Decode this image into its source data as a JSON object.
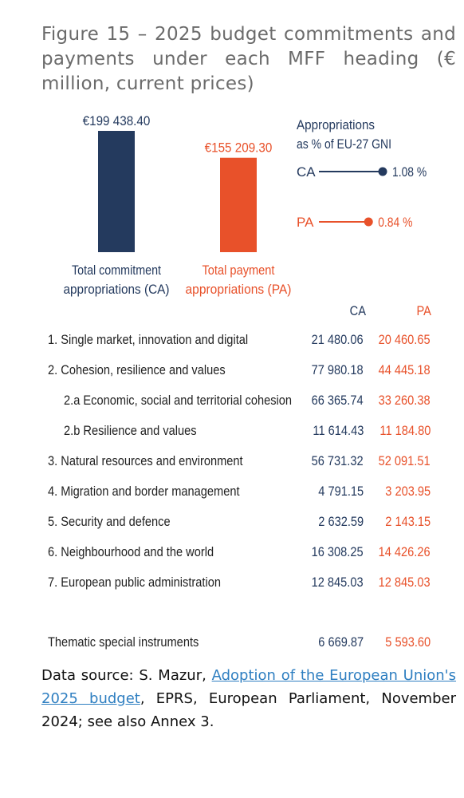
{
  "title": "Figure 15 – 2025 budget commitments and payments under each MFF heading (€ million, current prices)",
  "chart_data": [
    {
      "type": "bar",
      "categories": [
        "Total commitment appropriations (CA)",
        "Total payment appropriations (PA)"
      ],
      "values": [
        199438.4,
        155209.3
      ],
      "value_labels": [
        "€199 438.40",
        "€155 209.30"
      ],
      "category_lines": [
        [
          "Total commitment",
          "appropriations (CA)"
        ],
        [
          "Total payment",
          "appropriations (PA)"
        ]
      ],
      "colors": [
        "#243a5e",
        "#e8512a"
      ],
      "ylim": [
        0,
        199438.4
      ]
    },
    {
      "type": "scatter",
      "title_lines": [
        "Appropriations",
        "as % of EU-27 GNI"
      ],
      "series": [
        {
          "name": "CA",
          "value": 1.08,
          "label": "1.08 %",
          "color": "#243a5e"
        },
        {
          "name": "PA",
          "value": 0.84,
          "label": "0.84 %",
          "color": "#e8512a"
        }
      ]
    },
    {
      "type": "table",
      "columns": [
        "CA",
        "PA"
      ],
      "rows": [
        {
          "label": "1. Single market, innovation and digital",
          "ca": "21 480.06",
          "pa": "20 460.65",
          "sub": false
        },
        {
          "label": "2. Cohesion, resilience and values",
          "ca": "77 980.18",
          "pa": "44 445.18",
          "sub": false
        },
        {
          "label": "2.a Economic, social and territorial cohesion",
          "ca": "66 365.74",
          "pa": "33 260.38",
          "sub": true
        },
        {
          "label": "2.b Resilience and values",
          "ca": "11 614.43",
          "pa": "11 184.80",
          "sub": true
        },
        {
          "label": "3. Natural resources and environment",
          "ca": "56 731.32",
          "pa": "52 091.51",
          "sub": false
        },
        {
          "label": "4. Migration and border management",
          "ca": "4 791.15",
          "pa": "3 203.95",
          "sub": false
        },
        {
          "label": "5. Security and defence",
          "ca": "2 632.59",
          "pa": "2 143.15",
          "sub": false
        },
        {
          "label": "6. Neighbourhood and the world",
          "ca": "16 308.25",
          "pa": "14 426.26",
          "sub": false
        },
        {
          "label": "7. European public administration",
          "ca": "12 845.03",
          "pa": "12 845.03",
          "sub": false
        },
        {
          "label": "Thematic special instruments",
          "ca": "6 669.87",
          "pa": "5 593.60",
          "sub": false
        }
      ]
    }
  ],
  "source": {
    "prefix": "Data source: S. Mazur, ",
    "link_text": "Adoption of the European Union's 2025 budget",
    "suffix": ", EPRS, European Parliament, November 2024; see also Annex 3."
  }
}
